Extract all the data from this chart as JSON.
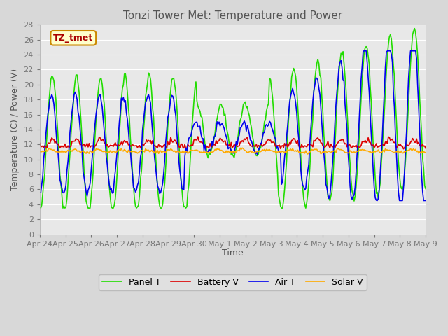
{
  "title": "Tonzi Tower Met: Temperature and Power",
  "xlabel": "Time",
  "ylabel": "Temperature (C) / Power (V)",
  "ylim": [
    0,
    28
  ],
  "yticks": [
    0,
    2,
    4,
    6,
    8,
    10,
    12,
    14,
    16,
    18,
    20,
    22,
    24,
    26,
    28
  ],
  "xtick_labels": [
    "Apr 24",
    "Apr 25",
    "Apr 26",
    "Apr 27",
    "Apr 28",
    "Apr 29",
    "Apr 30",
    "May 1",
    "May 2",
    "May 3",
    "May 4",
    "May 5",
    "May 6",
    "May 7",
    "May 8",
    "May 9"
  ],
  "legend_labels": [
    "Panel T",
    "Battery V",
    "Air T",
    "Solar V"
  ],
  "line_colors": [
    "#22dd00",
    "#dd0000",
    "#0000ee",
    "#ffaa00"
  ],
  "watermark_text": "TZ_tmet",
  "watermark_bg": "#ffffcc",
  "watermark_border": "#cc8800",
  "watermark_text_color": "#aa0000",
  "fig_bg": "#d8d8d8",
  "plot_bg": "#e8e8e8",
  "grid_color": "#ffffff",
  "title_color": "#555555"
}
